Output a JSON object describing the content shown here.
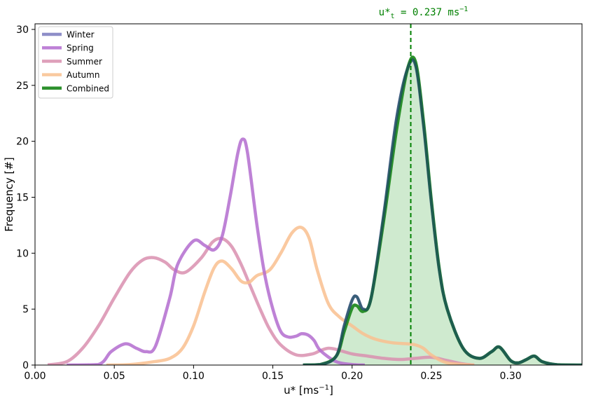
{
  "chart_data": {
    "type": "line",
    "xlabel": "u* [ms",
    "xlabel_sup": "−1",
    "xlabel_end": "]",
    "ylabel": "Frequency [#]",
    "xlim": [
      0.0,
      0.345
    ],
    "ylim": [
      0,
      30.5
    ],
    "xticks": [
      0.0,
      0.05,
      0.1,
      0.15,
      0.2,
      0.25,
      0.3
    ],
    "xtick_labels": [
      "0.00",
      "0.05",
      "0.10",
      "0.15",
      "0.20",
      "0.25",
      "0.30"
    ],
    "yticks": [
      0,
      5,
      10,
      15,
      20,
      25,
      30
    ],
    "ytick_labels": [
      "0",
      "5",
      "10",
      "15",
      "20",
      "25",
      "30"
    ],
    "grid": false,
    "legend_position": "top-left",
    "threshold": {
      "x": 0.237,
      "label_main": "u*",
      "label_sub": "t",
      "label_rest": " = 0.237 ms",
      "label_sup": "−1",
      "color": "#008000"
    },
    "series": [
      {
        "name": "Winter",
        "color": "#7b7bbf",
        "x": [
          0.169,
          0.18,
          0.19,
          0.195,
          0.2,
          0.203,
          0.207,
          0.212,
          0.22,
          0.228,
          0.235,
          0.24,
          0.245,
          0.25,
          0.255,
          0.26,
          0.27,
          0.28,
          0.288,
          0.293,
          0.3,
          0.305,
          0.31,
          0.315,
          0.32,
          0.33,
          0.345
        ],
        "y": [
          0,
          0.05,
          0.8,
          3.5,
          5.8,
          6.1,
          5.0,
          6.0,
          13.5,
          22.0,
          26.5,
          26.8,
          21.5,
          14.5,
          8.5,
          5.0,
          1.5,
          0.6,
          1.2,
          1.6,
          0.4,
          0.2,
          0.5,
          0.8,
          0.3,
          0.02,
          0
        ]
      },
      {
        "name": "Spring",
        "color": "#b36ccf",
        "x": [
          0.02,
          0.04,
          0.048,
          0.057,
          0.064,
          0.07,
          0.076,
          0.085,
          0.09,
          0.1,
          0.107,
          0.113,
          0.118,
          0.123,
          0.128,
          0.131,
          0.134,
          0.14,
          0.145,
          0.15,
          0.155,
          0.16,
          0.165,
          0.168,
          0.172,
          0.176,
          0.18,
          0.19,
          0.2,
          0.208
        ],
        "y": [
          0,
          0.05,
          1.2,
          1.9,
          1.5,
          1.2,
          1.7,
          6.0,
          9.0,
          11.1,
          10.7,
          10.3,
          11.5,
          15.0,
          19.0,
          20.2,
          19.0,
          12.5,
          8.0,
          5.0,
          3.0,
          2.5,
          2.6,
          2.8,
          2.7,
          2.2,
          1.3,
          0.3,
          0.05,
          0
        ]
      },
      {
        "name": "Summer",
        "color": "#d98faf",
        "x": [
          0.008,
          0.02,
          0.03,
          0.04,
          0.05,
          0.06,
          0.068,
          0.075,
          0.082,
          0.088,
          0.095,
          0.105,
          0.112,
          0.118,
          0.124,
          0.13,
          0.136,
          0.142,
          0.148,
          0.155,
          0.165,
          0.175,
          0.18,
          0.185,
          0.19,
          0.2,
          0.21,
          0.22,
          0.23,
          0.24,
          0.25,
          0.26,
          0.27,
          0.277
        ],
        "y": [
          0.02,
          0.3,
          1.5,
          3.5,
          6.0,
          8.3,
          9.4,
          9.6,
          9.2,
          8.5,
          8.3,
          9.6,
          11.0,
          11.3,
          10.6,
          9.0,
          7.0,
          5.0,
          3.2,
          1.8,
          0.9,
          1.0,
          1.3,
          1.5,
          1.4,
          1.0,
          0.8,
          0.6,
          0.5,
          0.6,
          0.7,
          0.4,
          0.1,
          0
        ]
      },
      {
        "name": "Autumn",
        "color": "#f9c08f",
        "x": [
          0.045,
          0.06,
          0.075,
          0.085,
          0.093,
          0.1,
          0.107,
          0.113,
          0.118,
          0.124,
          0.13,
          0.135,
          0.14,
          0.148,
          0.155,
          0.162,
          0.168,
          0.173,
          0.178,
          0.185,
          0.192,
          0.2,
          0.207,
          0.215,
          0.225,
          0.235,
          0.24,
          0.245,
          0.25,
          0.26,
          0.277
        ],
        "y": [
          0,
          0.05,
          0.3,
          0.6,
          1.5,
          3.5,
          6.5,
          8.7,
          9.3,
          8.6,
          7.5,
          7.4,
          8.0,
          8.5,
          10.0,
          11.8,
          12.3,
          11.3,
          8.5,
          5.5,
          4.3,
          3.5,
          2.8,
          2.3,
          2.0,
          1.9,
          1.8,
          1.5,
          0.9,
          0.2,
          0
        ]
      },
      {
        "name": "Combined",
        "color": "#228b22",
        "fill": "#b5deb5",
        "x": [
          0.169,
          0.18,
          0.19,
          0.195,
          0.2,
          0.203,
          0.207,
          0.212,
          0.22,
          0.228,
          0.235,
          0.24,
          0.245,
          0.25,
          0.255,
          0.26,
          0.27,
          0.28,
          0.288,
          0.293,
          0.3,
          0.305,
          0.31,
          0.315,
          0.32,
          0.33,
          0.345
        ],
        "y": [
          0,
          0.05,
          0.8,
          3.0,
          5.1,
          5.3,
          4.8,
          6.0,
          13.0,
          21.0,
          26.5,
          27.1,
          21.8,
          14.7,
          8.6,
          5.0,
          1.5,
          0.6,
          1.2,
          1.6,
          0.4,
          0.2,
          0.5,
          0.8,
          0.3,
          0.02,
          0
        ]
      }
    ],
    "overlay_color": "#1c4d5c"
  }
}
